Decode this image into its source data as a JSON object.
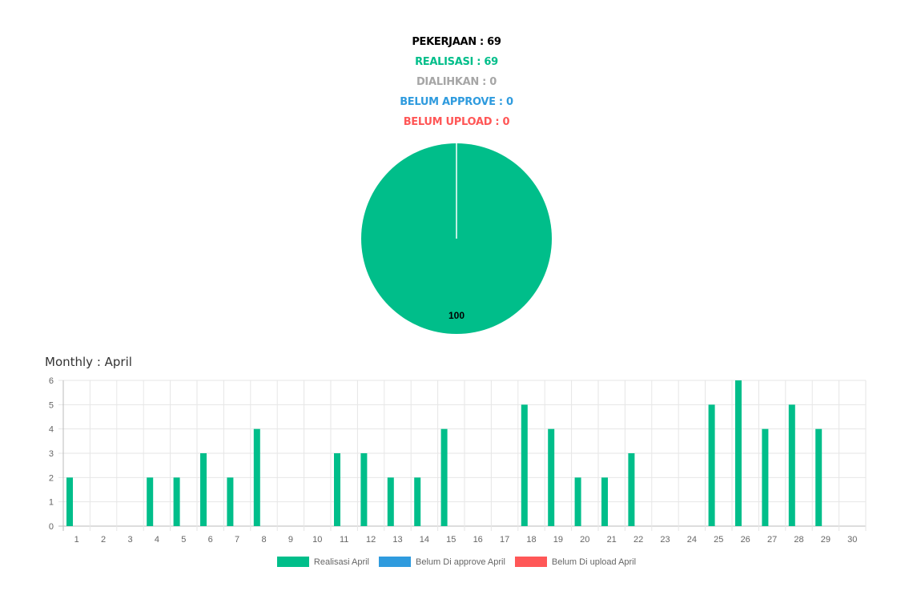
{
  "summary": {
    "pekerjaan": "PEKERJAAN : 69",
    "realisasi": "REALISASI : 69",
    "dialihkan": "DIALIHKAN : 0",
    "belum_approve": "BELUM APPROVE : 0",
    "belum_upload": "BELUM UPLOAD : 0"
  },
  "colors": {
    "pekerjaan": "#000000",
    "realisasi": "#00be8a",
    "dialihkan": "#a6a6a6",
    "belum_approve": "#2f9bde",
    "belum_upload": "#ff5757"
  },
  "monthly_title": "Monthly : April",
  "chart_data": [
    {
      "type": "pie",
      "slices": [
        {
          "name": "Realisasi",
          "value": 100,
          "color": "#00be8a"
        }
      ],
      "data_labels": [
        "100"
      ]
    },
    {
      "type": "bar",
      "categories": [
        "1",
        "2",
        "3",
        "4",
        "5",
        "6",
        "7",
        "8",
        "9",
        "10",
        "11",
        "12",
        "13",
        "14",
        "15",
        "16",
        "17",
        "18",
        "19",
        "20",
        "21",
        "22",
        "23",
        "24",
        "25",
        "26",
        "27",
        "28",
        "29",
        "30"
      ],
      "series": [
        {
          "name": "Realisasi April",
          "color": "#00be8a",
          "values": [
            2,
            0,
            0,
            2,
            2,
            3,
            2,
            4,
            0,
            0,
            3,
            3,
            2,
            2,
            4,
            0,
            0,
            5,
            4,
            2,
            2,
            3,
            0,
            0,
            5,
            6,
            4,
            5,
            4,
            0
          ]
        },
        {
          "name": "Belum Di approve April",
          "color": "#2f9bde",
          "values": [
            0,
            0,
            0,
            0,
            0,
            0,
            0,
            0,
            0,
            0,
            0,
            0,
            0,
            0,
            0,
            0,
            0,
            0,
            0,
            0,
            0,
            0,
            0,
            0,
            0,
            0,
            0,
            0,
            0,
            0
          ]
        },
        {
          "name": "Belum Di upload April",
          "color": "#ff5757",
          "values": [
            0,
            0,
            0,
            0,
            0,
            0,
            0,
            0,
            0,
            0,
            0,
            0,
            0,
            0,
            0,
            0,
            0,
            0,
            0,
            0,
            0,
            0,
            0,
            0,
            0,
            0,
            0,
            0,
            0,
            0
          ]
        }
      ],
      "yticks": [
        "0",
        "1",
        "2",
        "3",
        "4",
        "5",
        "6"
      ],
      "ylim": [
        0,
        6
      ],
      "grid": true,
      "legend": "bottom"
    }
  ]
}
